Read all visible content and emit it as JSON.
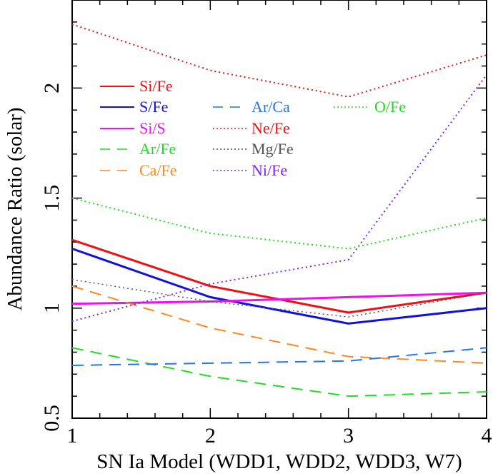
{
  "chart_data": {
    "type": "line",
    "xlabel": "SN Ia Model (WDD1, WDD2, WDD3, W7)",
    "ylabel": "Abundance Ratio (solar)",
    "xlim": [
      1,
      4
    ],
    "ylim": [
      0.5,
      2.4
    ],
    "x_ticks": [
      "1",
      "2",
      "3",
      "4"
    ],
    "y_ticks": [
      "0.5",
      "1",
      "1.5",
      "2"
    ],
    "x": [
      1,
      2,
      3,
      4
    ],
    "series": [
      {
        "name": "Si/Fe",
        "color": "#ee1111",
        "style": "solid",
        "width": 3,
        "values": [
          1.31,
          1.1,
          0.98,
          1.07
        ]
      },
      {
        "name": "S/Fe",
        "color": "#1111dd",
        "style": "solid",
        "width": 3,
        "values": [
          1.27,
          1.05,
          0.93,
          1.0
        ]
      },
      {
        "name": "Si/S",
        "color": "#ee11ee",
        "style": "solid",
        "width": 3,
        "values": [
          1.02,
          1.03,
          1.05,
          1.07
        ]
      },
      {
        "name": "Ar/Fe",
        "color": "#22dd22",
        "style": "dashed",
        "width": 2,
        "values": [
          0.82,
          0.69,
          0.6,
          0.62
        ]
      },
      {
        "name": "Ca/Fe",
        "color": "#ff8822",
        "style": "dashed",
        "width": 2,
        "values": [
          1.1,
          0.91,
          0.78,
          0.75
        ]
      },
      {
        "name": "Ar/Ca",
        "color": "#2277ee",
        "style": "dashed",
        "width": 2,
        "values": [
          0.74,
          0.75,
          0.76,
          0.82
        ]
      },
      {
        "name": "Ne/Fe",
        "color": "#ee1111",
        "style": "dotted",
        "width": 2,
        "values": [
          2.29,
          2.08,
          1.96,
          2.15
        ]
      },
      {
        "name": "Mg/Fe",
        "color": "#555555",
        "style": "dotted",
        "width": 1.5,
        "values": [
          1.13,
          1.03,
          0.96,
          1.07
        ]
      },
      {
        "name": "Ni/Fe",
        "color": "#8822ee",
        "style": "dotted",
        "width": 2,
        "values": [
          0.94,
          1.11,
          1.22,
          2.06
        ]
      },
      {
        "name": "O/Fe",
        "color": "#22dd22",
        "style": "dotted",
        "width": 2,
        "values": [
          1.5,
          1.34,
          1.27,
          1.41
        ]
      }
    ],
    "legend_columns": [
      [
        "Si/Fe",
        "S/Fe",
        "Si/S",
        "Ar/Fe",
        "Ca/Fe"
      ],
      [
        "Ar/Ca",
        "Ne/Fe",
        "Mg/Fe",
        "Ni/Fe"
      ],
      [
        "O/Fe"
      ]
    ],
    "legend_placement": "upper-left inside plot",
    "grid": false
  }
}
